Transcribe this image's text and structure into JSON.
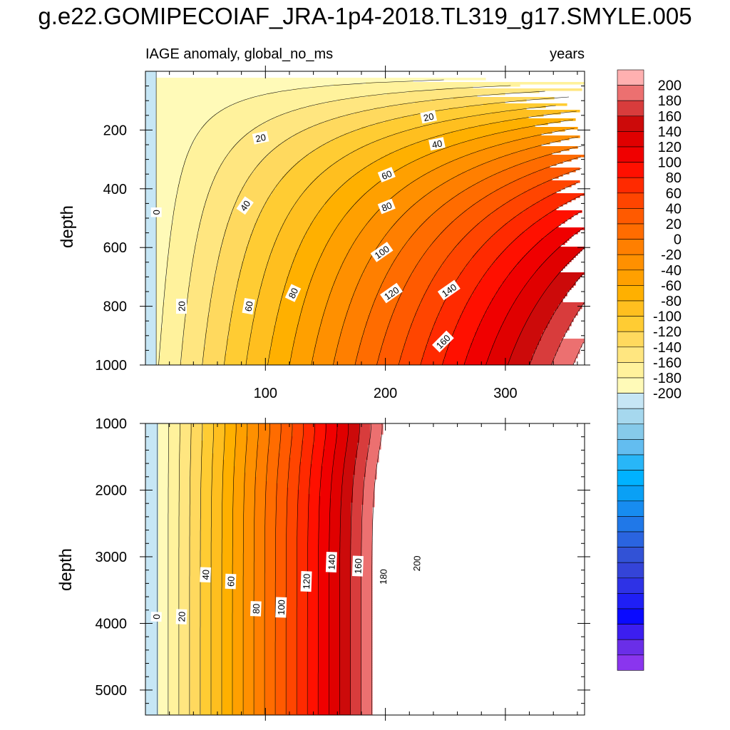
{
  "title": "g.e22.GOMIPECOIAF_JRA-1p4-2018.TL319_g17.SMYLE.005",
  "colors": {
    "positive": [
      "#fffab8",
      "#fff29c",
      "#ffe680",
      "#ffd95e",
      "#ffcc33",
      "#ffbf1f",
      "#ffb000",
      "#ffa000",
      "#ff9000",
      "#ff7f00",
      "#ff6c00",
      "#ff5a00",
      "#ff4500",
      "#ff2a00",
      "#ff1000",
      "#f00000",
      "#e00000",
      "#cc0a0a",
      "#d83c3c",
      "#ec7070",
      "#ffb0b0"
    ],
    "negative": [
      "#c6e6f5",
      "#a6d8ee",
      "#86caea",
      "#63bdf0",
      "#28b6f8",
      "#00b2ff",
      "#0aa0f5",
      "#178cf0",
      "#2078e8",
      "#2a64e0",
      "#3252d6",
      "#3444d8",
      "#2e32e6",
      "#1f1ff5",
      "#0a0aff",
      "#3c1ef0",
      "#6a2ee8",
      "#8a35ee"
    ]
  },
  "colorbar": {
    "labels": [
      "200",
      "180",
      "160",
      "140",
      "120",
      "100",
      "80",
      "60",
      "40",
      "20",
      "0",
      "-20",
      "-40",
      "-60",
      "-80",
      "-100",
      "-120",
      "-140",
      "-160",
      "-180",
      "-200"
    ]
  },
  "chart_data": [
    {
      "type": "heatmap",
      "subtitle_left": "IAGE anomaly, global_no_ms",
      "subtitle_right": "years",
      "ylabel": "depth",
      "x_ticks": [
        "100",
        "200",
        "300"
      ],
      "x_tick_values": [
        100,
        200,
        300
      ],
      "y_ticks": [
        "200",
        "400",
        "600",
        "800",
        "1000"
      ],
      "y_tick_values": [
        200,
        400,
        600,
        800,
        1000
      ],
      "xlim": [
        0,
        366
      ],
      "ylim": [
        0,
        1000
      ],
      "y_inverted": true,
      "contour_interval": 10,
      "contour_labels": [
        {
          "text": "0",
          "x": 9,
          "y": 480
        },
        {
          "text": "20",
          "x": 30,
          "y": 800
        },
        {
          "text": "20",
          "x": 96,
          "y": 226
        },
        {
          "text": "20",
          "x": 236,
          "y": 155
        },
        {
          "text": "40",
          "x": 83,
          "y": 457
        },
        {
          "text": "40",
          "x": 243,
          "y": 247
        },
        {
          "text": "60",
          "x": 86,
          "y": 800
        },
        {
          "text": "60",
          "x": 201,
          "y": 352
        },
        {
          "text": "80",
          "x": 123,
          "y": 755
        },
        {
          "text": "80",
          "x": 201,
          "y": 460
        },
        {
          "text": "100",
          "x": 197,
          "y": 615
        },
        {
          "text": "120",
          "x": 205,
          "y": 755
        },
        {
          "text": "140",
          "x": 253,
          "y": 745
        },
        {
          "text": "160",
          "x": 248,
          "y": 920
        }
      ]
    },
    {
      "type": "heatmap",
      "ylabel": "depth",
      "y_ticks": [
        "1000",
        "2000",
        "3000",
        "4000",
        "5000"
      ],
      "y_tick_values": [
        1000,
        2000,
        3000,
        4000,
        5000
      ],
      "xlim": [
        0,
        366
      ],
      "ylim": [
        1000,
        5375
      ],
      "y_inverted": true,
      "contour_interval": 10,
      "contour_labels": [
        {
          "text": "0",
          "x": 9,
          "y": 3900
        },
        {
          "text": "20",
          "x": 30,
          "y": 3900
        },
        {
          "text": "40",
          "x": 50,
          "y": 3270
        },
        {
          "text": "60",
          "x": 71,
          "y": 3370
        },
        {
          "text": "80",
          "x": 92,
          "y": 3780
        },
        {
          "text": "100",
          "x": 113,
          "y": 3760
        },
        {
          "text": "120",
          "x": 134,
          "y": 3370
        },
        {
          "text": "140",
          "x": 155,
          "y": 3080
        },
        {
          "text": "160",
          "x": 177,
          "y": 3140
        },
        {
          "text": "180",
          "x": 198,
          "y": 3300
        },
        {
          "text": "200",
          "x": 226,
          "y": 3100
        }
      ]
    }
  ]
}
